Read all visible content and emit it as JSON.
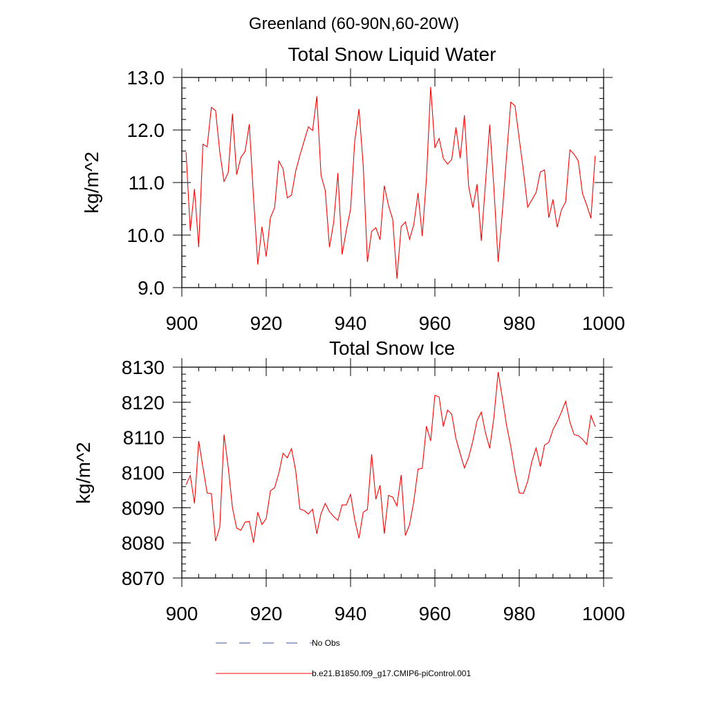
{
  "suptitle": "Greenland (60-90N,60-20W)",
  "colors": {
    "model": "#ff0000",
    "obs": "#3a4fa0",
    "axis": "#000000"
  },
  "legend": [
    {
      "label": "No Obs",
      "style": "dashed",
      "color": "#3a4fa0"
    },
    {
      "label": "b.e21.B1850.f09_g17.CMIP6-piControl.001",
      "style": "solid",
      "color": "#ff0000"
    }
  ],
  "chart_data": [
    {
      "type": "line",
      "title": "Total Snow Liquid Water",
      "xlabel": "",
      "ylabel": "kg/m^2",
      "xlim": [
        900,
        1000
      ],
      "ylim": [
        9.0,
        13.0
      ],
      "xticks": [
        900,
        920,
        940,
        960,
        980,
        1000
      ],
      "xtick_labels": [
        "900",
        "920",
        "940",
        "960",
        "980",
        "1000"
      ],
      "yticks": [
        9.0,
        10.0,
        11.0,
        12.0,
        13.0
      ],
      "ytick_labels": [
        "9.0",
        "10.0",
        "11.0",
        "12.0",
        "13.0"
      ],
      "x_minor_step": 4,
      "y_minor_step": 0.2,
      "grid": false,
      "series": [
        {
          "name": "b.e21.B1850.f09_g17.CMIP6-piControl.001",
          "x_start": 901,
          "x_step": 1,
          "values": [
            11.58,
            10.08,
            10.88,
            9.77,
            11.73,
            11.68,
            12.43,
            12.37,
            11.58,
            11.02,
            11.19,
            12.31,
            11.15,
            11.48,
            11.59,
            12.11,
            10.71,
            9.44,
            10.16,
            9.59,
            10.33,
            10.52,
            11.41,
            11.26,
            10.71,
            10.76,
            11.22,
            11.52,
            11.79,
            12.06,
            11.99,
            12.64,
            11.14,
            10.85,
            9.77,
            10.24,
            11.18,
            9.63,
            10.09,
            10.49,
            11.79,
            12.4,
            11.33,
            9.49,
            10.07,
            10.14,
            9.91,
            10.94,
            10.56,
            10.3,
            9.17,
            10.16,
            10.25,
            9.92,
            10.2,
            10.8,
            9.98,
            11.08,
            12.82,
            11.66,
            11.84,
            11.46,
            11.35,
            11.44,
            12.05,
            11.46,
            12.28,
            10.93,
            10.52,
            10.97,
            9.89,
            10.99,
            12.1,
            10.89,
            9.49,
            10.44,
            11.51,
            12.53,
            12.46,
            11.83,
            11.22,
            10.53,
            10.67,
            10.81,
            11.2,
            11.24,
            10.33,
            10.68,
            10.15,
            10.48,
            10.63,
            11.62,
            11.54,
            11.41,
            10.79,
            10.57,
            10.32,
            11.51
          ]
        }
      ]
    },
    {
      "type": "line",
      "title": "Total Snow Ice",
      "xlabel": "",
      "ylabel": "kg/m^2",
      "xlim": [
        900,
        1000
      ],
      "ylim": [
        8070,
        8130
      ],
      "xticks": [
        900,
        920,
        940,
        960,
        980,
        1000
      ],
      "xtick_labels": [
        "900",
        "920",
        "940",
        "960",
        "980",
        "1000"
      ],
      "yticks": [
        8070,
        8080,
        8090,
        8100,
        8110,
        8120,
        8130
      ],
      "ytick_labels": [
        "8070",
        "8080",
        "8090",
        "8100",
        "8110",
        "8120",
        "8130"
      ],
      "x_minor_step": 4,
      "y_minor_step": 2,
      "grid": false,
      "series": [
        {
          "name": "b.e21.B1850.f09_g17.CMIP6-piControl.001",
          "x_start": 901,
          "x_step": 1,
          "values": [
            8096.5,
            8099.2,
            8091.2,
            8109.0,
            8101.5,
            8094.2,
            8094.0,
            8080.5,
            8084.5,
            8110.8,
            8101.5,
            8090.0,
            8084.2,
            8083.6,
            8085.9,
            8086.1,
            8080.1,
            8088.7,
            8085.2,
            8086.9,
            8094.8,
            8095.7,
            8099.8,
            8105.5,
            8104.2,
            8106.8,
            8100.5,
            8089.6,
            8089.2,
            8088.2,
            8089.6,
            8082.6,
            8088.3,
            8091.2,
            8088.9,
            8087.5,
            8086.4,
            8090.8,
            8090.8,
            8093.8,
            8086.6,
            8081.3,
            8088.7,
            8089.5,
            8105.2,
            8092.4,
            8096.4,
            8082.6,
            8093.5,
            8093.0,
            8090.5,
            8099.3,
            8082.1,
            8085.2,
            8091.8,
            8101.0,
            8101.2,
            8113.2,
            8109.0,
            8122.0,
            8121.5,
            8113.1,
            8117.8,
            8116.6,
            8109.6,
            8105.4,
            8101.3,
            8104.3,
            8109.0,
            8114.8,
            8117.2,
            8111.3,
            8106.9,
            8115.8,
            8128.6,
            8121.2,
            8113.4,
            8107.4,
            8100.1,
            8094.2,
            8094.1,
            8097.5,
            8103.2,
            8107.0,
            8101.7,
            8107.8,
            8108.6,
            8112.2,
            8114.5,
            8117.2,
            8120.3,
            8114.4,
            8110.8,
            8110.5,
            8109.5,
            8108.0,
            8116.2,
            8113.1
          ]
        }
      ]
    }
  ]
}
